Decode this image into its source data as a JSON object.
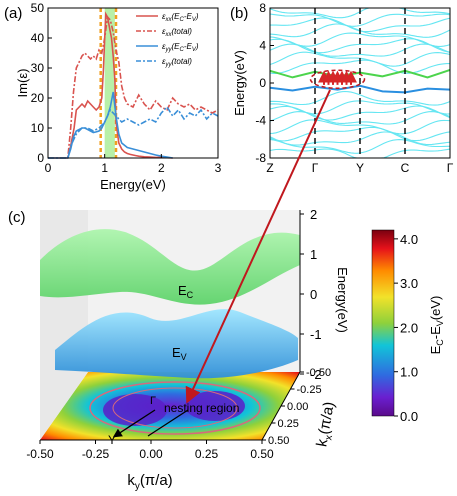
{
  "figure": {
    "panel_a_label": "(a)",
    "panel_b_label": "(b)",
    "panel_c_label": "(c)"
  },
  "chart_data": [
    {
      "panel": "(a)",
      "type": "line",
      "xlabel": "Energy(eV)",
      "ylabel": "Im(ε)",
      "xlim": [
        0,
        3
      ],
      "ylim": [
        0,
        50
      ],
      "xticks": [
        "0",
        "1",
        "2",
        "3"
      ],
      "yticks": [
        "0",
        "10",
        "20",
        "30",
        "40",
        "50"
      ],
      "legend_position": "top-right",
      "highlight_band_eV": [
        1.0,
        1.18
      ],
      "highlight_dashed_x_eV": [
        0.93,
        1.2
      ],
      "series": [
        {
          "name": "εxx(EC-EV)",
          "legend": {
            "base": "ε",
            "sub": "xx",
            "rest": "(E",
            "sub2": "C",
            "rest2": "-E",
            "sub3": "V",
            "rest3": ")"
          },
          "color": "#d9534f",
          "style": "solid",
          "x": [
            0.0,
            0.35,
            0.38,
            0.42,
            0.46,
            0.5,
            0.55,
            0.6,
            0.65,
            0.7,
            0.75,
            0.8,
            0.85,
            0.9,
            0.95,
            0.98,
            1.0,
            1.02,
            1.05,
            1.08,
            1.1,
            1.12,
            1.15,
            1.18,
            1.2,
            1.25,
            1.3,
            1.35,
            1.4,
            1.45,
            1.5,
            1.55,
            1.6,
            1.7,
            1.8,
            1.9,
            2.0,
            2.1,
            2.2
          ],
          "y": [
            0,
            0,
            2,
            6,
            10,
            16,
            17,
            18,
            17,
            19,
            18,
            17,
            16,
            17,
            20,
            30,
            40,
            48,
            47,
            44,
            42,
            40,
            34,
            26,
            12,
            5,
            3,
            2,
            1.5,
            1.2,
            1,
            0.8,
            0.6,
            0.4,
            0.3,
            0.2,
            0.2,
            0.1,
            0
          ]
        },
        {
          "name": "εxx(total)",
          "legend": {
            "base": "ε",
            "sub": "xx",
            "rest": "(total)"
          },
          "color": "#d9534f",
          "style": "dash-dot",
          "x": [
            0.0,
            0.35,
            0.4,
            0.45,
            0.5,
            0.55,
            0.6,
            0.65,
            0.7,
            0.75,
            0.8,
            0.85,
            0.9,
            0.95,
            1.0,
            1.05,
            1.1,
            1.15,
            1.2,
            1.25,
            1.3,
            1.35,
            1.4,
            1.5,
            1.6,
            1.7,
            1.8,
            1.9,
            2.0,
            2.1,
            2.2,
            2.3,
            2.4,
            2.5,
            2.6,
            2.7,
            2.8,
            2.9,
            3.0
          ],
          "y": [
            0,
            0,
            10,
            22,
            30,
            32,
            34,
            35,
            34,
            33,
            34,
            33,
            36,
            35,
            40,
            47,
            46,
            42,
            36,
            32,
            24,
            20,
            18,
            17,
            21,
            18,
            16,
            19,
            17,
            16,
            20,
            18,
            17,
            18,
            16,
            17,
            16,
            15,
            16
          ]
        },
        {
          "name": "εyy(EC-EV)",
          "legend": {
            "base": "ε",
            "sub": "yy",
            "rest": "(E",
            "sub2": "C",
            "rest2": "-E",
            "sub3": "V",
            "rest3": ")"
          },
          "color": "#3a8fd8",
          "style": "solid",
          "x": [
            0.0,
            0.35,
            0.4,
            0.45,
            0.5,
            0.55,
            0.6,
            0.65,
            0.7,
            0.75,
            0.8,
            0.85,
            0.9,
            0.95,
            1.0,
            1.05,
            1.1,
            1.15,
            1.2,
            1.25,
            1.3,
            1.4,
            1.5,
            1.6,
            1.7,
            1.8,
            1.9,
            2.0,
            2.1,
            2.2
          ],
          "y": [
            0,
            0,
            3,
            7,
            9,
            9.5,
            10,
            10,
            9.5,
            9,
            8.5,
            8.7,
            9,
            10,
            12,
            14,
            17,
            22,
            14,
            8,
            5,
            3.5,
            3,
            2.5,
            2,
            1.5,
            1,
            0.6,
            0.3,
            0
          ]
        },
        {
          "name": "εyy(total)",
          "legend": {
            "base": "ε",
            "sub": "yy",
            "rest": "(total)"
          },
          "color": "#3a8fd8",
          "style": "dash-dot",
          "x": [
            0.0,
            0.35,
            0.4,
            0.5,
            0.6,
            0.7,
            0.8,
            0.9,
            1.0,
            1.1,
            1.2,
            1.3,
            1.4,
            1.5,
            1.6,
            1.7,
            1.8,
            1.9,
            2.0,
            2.1,
            2.2,
            2.3,
            2.4,
            2.5,
            2.6,
            2.7,
            2.8,
            2.9,
            3.0
          ],
          "y": [
            0,
            0,
            4,
            8,
            10,
            10,
            9,
            10,
            12,
            16,
            14,
            12,
            13,
            12,
            11,
            12,
            13,
            12,
            15,
            17,
            14,
            16,
            13,
            15,
            14,
            16,
            13,
            15,
            14
          ]
        }
      ]
    },
    {
      "panel": "(b)",
      "type": "line",
      "ylabel": "Energy(eV)",
      "ylim": [
        -8,
        8
      ],
      "yticks": [
        "-8",
        "-4",
        "0",
        "4",
        "8"
      ],
      "k_labels": [
        "Z",
        "Γ",
        "Y",
        "C",
        "Γ"
      ],
      "k_positions": [
        0,
        1,
        2,
        3,
        4
      ],
      "dashed_lines_at": [
        1,
        2,
        3
      ],
      "conduction_edge": {
        "color": "#4cd44c",
        "k": [
          0,
          0.5,
          1,
          1.5,
          2,
          2.5,
          3,
          3.5,
          4
        ],
        "E": [
          1.3,
          0.6,
          1.2,
          0.7,
          1.1,
          0.7,
          1.3,
          0.6,
          1.4
        ]
      },
      "valence_edge": {
        "color": "#2a8fe0",
        "k": [
          0,
          0.5,
          1,
          1.5,
          2,
          2.5,
          3,
          3.5,
          4
        ],
        "E": [
          -0.5,
          -0.8,
          -0.4,
          -0.7,
          -0.3,
          -0.9,
          -1.0,
          -0.6,
          -0.7
        ]
      },
      "other_bands_color": "#66e6f2",
      "nesting_arrows": {
        "color": "#d62728",
        "from_E": -0.2,
        "to_E": 1.0
      }
    },
    {
      "panel": "(c)",
      "type": "surface",
      "xlabel": "ky(π/a)",
      "xlabel_parts": {
        "k": "k",
        "sub": "y",
        "rest": "(π/a)"
      },
      "ylabel": "kx(π/a)",
      "ylabel_parts": {
        "k": "k",
        "sub": "x",
        "rest": "(π/a)"
      },
      "zlabel": "Energy(eV)",
      "ky_ticks": [
        "-0.50",
        "-0.25",
        "0.00",
        "0.25",
        "0.50"
      ],
      "kx_ticks": [
        "-0.50",
        "-0.25",
        "0.00",
        "0.25",
        "0.50"
      ],
      "z_ticks": [
        "2",
        "1",
        "0",
        "-1",
        "-2"
      ],
      "surface_labels": {
        "ec": {
          "main": "E",
          "sub": "C"
        },
        "ev": {
          "main": "E",
          "sub": "V"
        }
      },
      "annotation": "nesting region",
      "gamma_label": "Y",
      "gamma_arrow_label": "Γ",
      "colorbar": {
        "label": "EC-EV(eV)",
        "label_parts": {
          "a": "E",
          "sub1": "C",
          "b": "-E",
          "sub2": "V",
          "c": "(eV)"
        },
        "ticks": [
          "4.0",
          "3.0",
          "2.0",
          "1.0",
          "0.0"
        ],
        "range": [
          0.0,
          4.2
        ],
        "colors": [
          "#7a0010",
          "#e6121a",
          "#ff8c00",
          "#f2e22a",
          "#8fd13b",
          "#12c4d8",
          "#2f6be0",
          "#6a1fd0",
          "#5a0a8a"
        ]
      }
    }
  ]
}
